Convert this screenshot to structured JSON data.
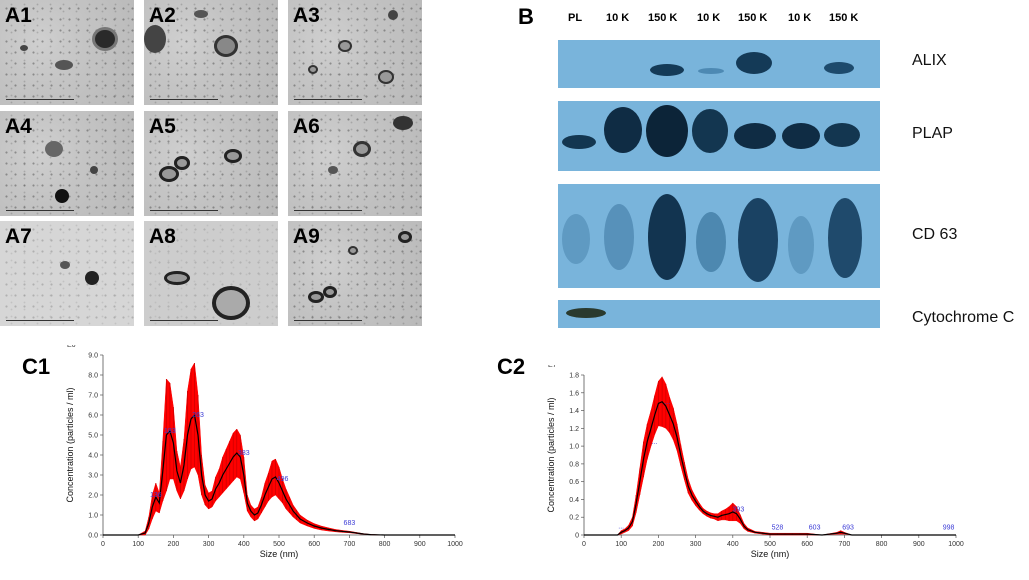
{
  "panel_a": {
    "tiles": [
      {
        "label": "A1"
      },
      {
        "label": "A2"
      },
      {
        "label": "A3"
      },
      {
        "label": "A4"
      },
      {
        "label": "A5"
      },
      {
        "label": "A6"
      },
      {
        "label": "A7"
      },
      {
        "label": "A8"
      },
      {
        "label": "A9"
      }
    ]
  },
  "panel_b": {
    "letter": "B",
    "lanes": [
      "PL",
      "10 K",
      "150 K",
      "10 K",
      "150 K",
      "10 K",
      "150 K"
    ],
    "blots": [
      {
        "label": "ALIX"
      },
      {
        "label": "PLAP"
      },
      {
        "label": "CD 63"
      },
      {
        "label": "Cytochrome C"
      }
    ],
    "blot_color": "#79b4db"
  },
  "chart_data": [
    {
      "type": "line",
      "panel": "C1",
      "xlabel": "Size (nm)",
      "ylabel": "Concentration (particles / ml)",
      "y_exponent": "E6",
      "xlim": [
        0,
        1000
      ],
      "ylim": [
        0,
        9.0
      ],
      "x_ticks": [
        0,
        100,
        200,
        300,
        400,
        500,
        600,
        700,
        800,
        900,
        1000
      ],
      "y_ticks": [
        "0.0",
        "1.0",
        "2.0",
        "3.0",
        "4.0",
        "5.0",
        "6.0",
        "7.0",
        "8.0",
        "9.0"
      ],
      "line_color": "#000000",
      "error_color": "#ff0000",
      "series": [
        {
          "x": [
            0,
            100,
            120,
            130,
            140,
            150,
            160,
            170,
            180,
            190,
            200,
            210,
            220,
            230,
            240,
            250,
            260,
            270,
            280,
            290,
            300,
            310,
            320,
            330,
            340,
            350,
            360,
            370,
            380,
            390,
            400,
            410,
            420,
            430,
            440,
            450,
            460,
            470,
            480,
            490,
            500,
            510,
            520,
            530,
            540,
            550,
            560,
            580,
            600,
            620,
            640,
            660,
            680,
            700,
            720,
            740,
            760,
            800,
            1000
          ],
          "y": [
            0,
            0,
            0.1,
            0.6,
            1.4,
            1.9,
            1.6,
            3.2,
            5.0,
            5.2,
            4.6,
            3.2,
            2.6,
            3.5,
            5.0,
            5.8,
            6.0,
            5.0,
            3.0,
            2.0,
            1.7,
            1.8,
            2.3,
            2.6,
            3.0,
            3.3,
            3.6,
            3.9,
            4.1,
            3.9,
            3.0,
            1.6,
            1.2,
            1.0,
            1.1,
            1.5,
            2.0,
            2.4,
            2.8,
            2.9,
            2.6,
            2.2,
            1.8,
            1.5,
            1.2,
            1.0,
            0.8,
            0.6,
            0.45,
            0.35,
            0.28,
            0.22,
            0.18,
            0.15,
            0.1,
            0.05,
            0.02,
            0,
            0
          ],
          "err": [
            0,
            0,
            0.1,
            0.3,
            0.6,
            0.7,
            0.5,
            1.5,
            2.8,
            2.4,
            1.8,
            1.0,
            0.8,
            1.3,
            2.2,
            2.5,
            2.6,
            2.0,
            1.0,
            0.5,
            0.4,
            0.4,
            0.6,
            0.7,
            0.9,
            1.0,
            1.1,
            1.2,
            1.2,
            1.1,
            0.9,
            0.4,
            0.3,
            0.3,
            0.3,
            0.4,
            0.6,
            0.7,
            0.9,
            0.9,
            0.8,
            0.6,
            0.5,
            0.4,
            0.3,
            0.25,
            0.2,
            0.15,
            0.12,
            0.1,
            0.08,
            0.06,
            0.05,
            0.04,
            0.03,
            0.02,
            0.01,
            0,
            0
          ]
        }
      ],
      "annotations": [
        {
          "x": 150,
          "y": 1.8,
          "text": "136"
        },
        {
          "x": 190,
          "y": 5.0,
          "text": "183"
        },
        {
          "x": 270,
          "y": 5.8,
          "text": "263"
        },
        {
          "x": 400,
          "y": 3.9,
          "text": "383"
        },
        {
          "x": 510,
          "y": 2.6,
          "text": "496"
        },
        {
          "x": 700,
          "y": 0.4,
          "text": "683"
        }
      ]
    },
    {
      "type": "line",
      "panel": "C2",
      "xlabel": "Size (nm)",
      "ylabel": "Concentration (particles / ml)",
      "y_exponent": "E7",
      "xlim": [
        0,
        1000
      ],
      "ylim": [
        0,
        1.8
      ],
      "x_ticks": [
        0,
        100,
        200,
        300,
        400,
        500,
        600,
        700,
        800,
        900,
        1000
      ],
      "y_ticks": [
        "0",
        "0.2",
        "0.4",
        "0.6",
        "0.8",
        "1.0",
        "1.2",
        "1.4",
        "1.6",
        "1.8"
      ],
      "line_color": "#000000",
      "error_color": "#ff0000",
      "series": [
        {
          "x": [
            0,
            90,
            100,
            110,
            120,
            130,
            140,
            150,
            160,
            170,
            180,
            190,
            200,
            210,
            220,
            230,
            240,
            250,
            260,
            270,
            280,
            290,
            300,
            310,
            320,
            330,
            340,
            350,
            360,
            370,
            380,
            390,
            400,
            410,
            420,
            430,
            440,
            460,
            480,
            500,
            520,
            540,
            560,
            580,
            600,
            640,
            680,
            690,
            700,
            720,
            760,
            800,
            1000
          ],
          "y": [
            0,
            0,
            0.03,
            0.05,
            0.08,
            0.15,
            0.35,
            0.6,
            0.85,
            1.05,
            1.2,
            1.35,
            1.48,
            1.5,
            1.45,
            1.35,
            1.25,
            1.1,
            0.9,
            0.72,
            0.55,
            0.45,
            0.38,
            0.32,
            0.27,
            0.24,
            0.22,
            0.21,
            0.2,
            0.22,
            0.23,
            0.24,
            0.26,
            0.24,
            0.18,
            0.1,
            0.06,
            0.03,
            0.02,
            0.01,
            0.01,
            0.01,
            0.01,
            0.01,
            0.01,
            0.0,
            0.02,
            0.03,
            0.02,
            0.0,
            0.0,
            0.0,
            0.0
          ],
          "err": [
            0,
            0,
            0.02,
            0.02,
            0.03,
            0.05,
            0.1,
            0.15,
            0.2,
            0.2,
            0.2,
            0.22,
            0.25,
            0.28,
            0.25,
            0.2,
            0.18,
            0.15,
            0.12,
            0.1,
            0.08,
            0.06,
            0.05,
            0.04,
            0.03,
            0.03,
            0.03,
            0.03,
            0.04,
            0.05,
            0.06,
            0.08,
            0.1,
            0.08,
            0.05,
            0.03,
            0.02,
            0.01,
            0.01,
            0.01,
            0.01,
            0.01,
            0.01,
            0.01,
            0.01,
            0.0,
            0.01,
            0.02,
            0.01,
            0.0,
            0.0,
            0.0,
            0.0
          ]
        }
      ],
      "annotations": [
        {
          "x": 100,
          "y": 0.05,
          "text": "..."
        },
        {
          "x": 190,
          "y": 1.0,
          "text": "..."
        },
        {
          "x": 225,
          "y": 1.45,
          "text": "..."
        },
        {
          "x": 415,
          "y": 0.24,
          "text": "393"
        },
        {
          "x": 520,
          "y": 0.04,
          "text": "528"
        },
        {
          "x": 620,
          "y": 0.04,
          "text": "603"
        },
        {
          "x": 710,
          "y": 0.04,
          "text": "693"
        },
        {
          "x": 980,
          "y": 0.04,
          "text": "998"
        }
      ]
    }
  ]
}
